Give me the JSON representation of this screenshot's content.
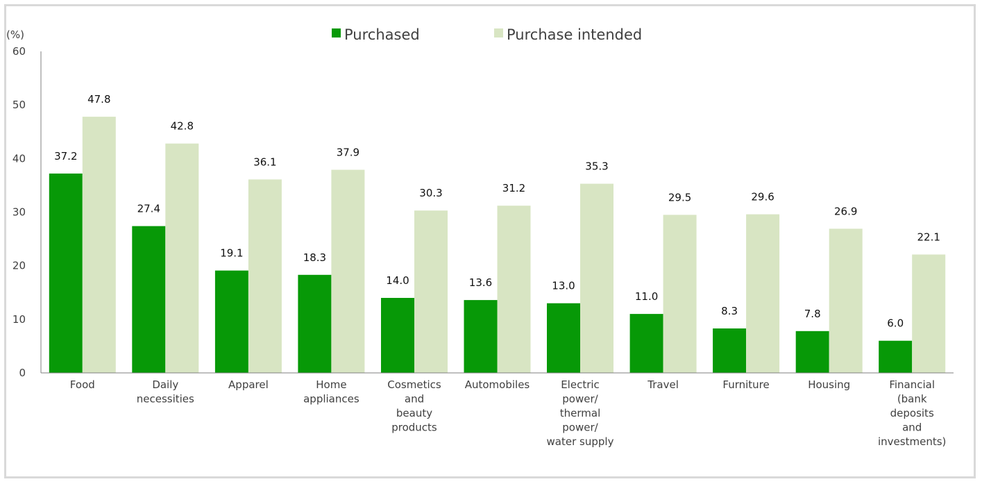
{
  "chart_data": {
    "type": "bar",
    "unit_label": "(%)",
    "categories": [
      [
        "Food"
      ],
      [
        "Daily",
        "necessities"
      ],
      [
        "Apparel"
      ],
      [
        "Home",
        "appliances"
      ],
      [
        "Cosmetics",
        "and",
        "beauty",
        "products"
      ],
      [
        "Automobiles"
      ],
      [
        "Electric",
        "power/",
        "thermal",
        "power/",
        "water supply"
      ],
      [
        "Travel"
      ],
      [
        "Furniture"
      ],
      [
        "Housing"
      ],
      [
        "Financial",
        "(bank",
        "deposits",
        "and",
        "investments)"
      ]
    ],
    "series": [
      {
        "name": "Purchased",
        "color": "#079907",
        "values": [
          37.2,
          27.4,
          19.1,
          18.3,
          14.0,
          13.6,
          13.0,
          11.0,
          8.3,
          7.8,
          6.0
        ]
      },
      {
        "name": "Purchase intended",
        "color": "#d8e5c3",
        "values": [
          47.8,
          42.8,
          36.1,
          37.9,
          30.3,
          31.2,
          35.3,
          29.5,
          29.6,
          26.9,
          22.1
        ]
      }
    ],
    "ylim": [
      0,
      60
    ],
    "yticks": [
      0,
      10,
      20,
      30,
      40,
      50,
      60
    ],
    "legend_position": "top-center",
    "grid": false
  }
}
